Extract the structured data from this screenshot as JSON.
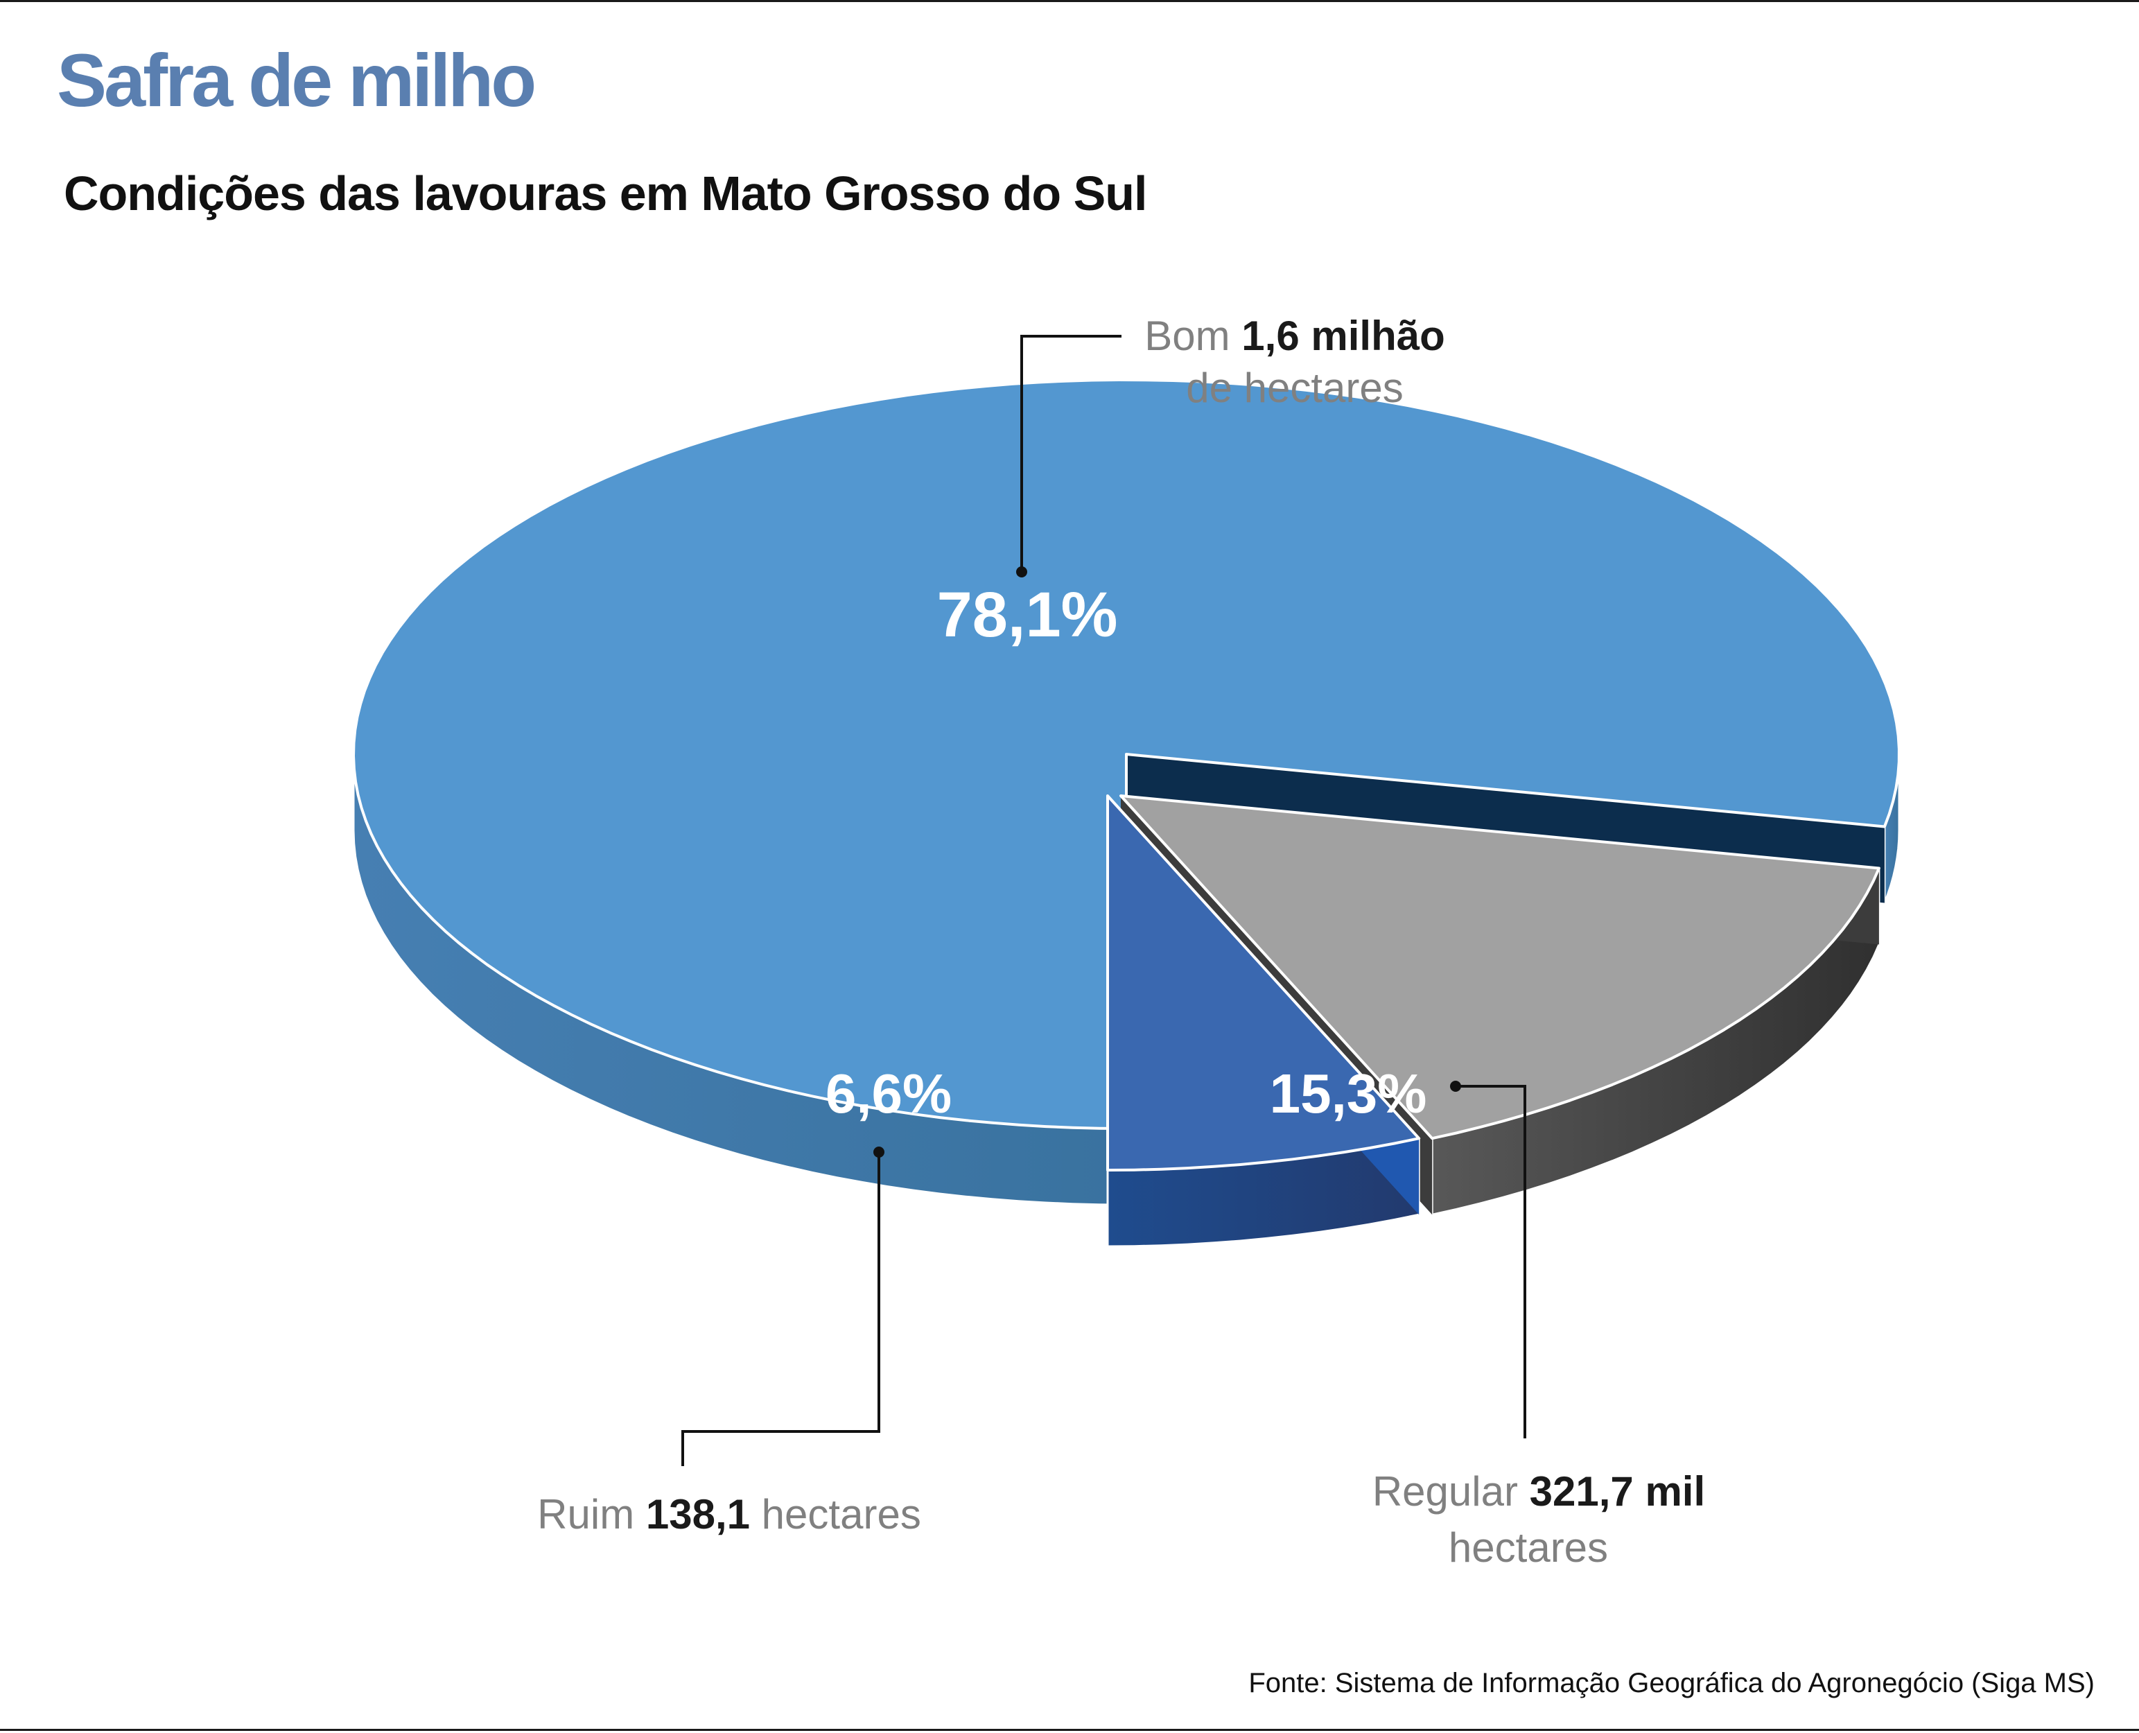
{
  "header": {
    "title": "Safra de milho",
    "subtitle": "Condições das lavouras em Mato Grosso do Sul"
  },
  "footer": {
    "source": "Fonte: Sistema de Informação Geográfica do Agronegócio (Siga MS)"
  },
  "chart_data": {
    "type": "pie",
    "title": "Safra de milho",
    "subtitle": "Condições das lavouras em Mato Grosso do Sul",
    "style": "3d-exploded",
    "slices": [
      {
        "category": "Bom",
        "percent": 78.1,
        "percent_label": "78,1%",
        "value_label": "1,6 milhão",
        "value_suffix": "de hectares",
        "color_top": "#5397d0",
        "color_side": "#3f79ac",
        "color_wall": "#0c2d4d"
      },
      {
        "category": "Regular",
        "percent": 15.3,
        "percent_label": "15,3%",
        "value_label": "321,7 mil",
        "value_suffix": "hectares",
        "color_top": "#a1a1a1",
        "color_side": "#3c3c3c",
        "color_wall": "#3c3c3c"
      },
      {
        "category": "Ruim",
        "percent": 6.6,
        "percent_label": "6,6%",
        "value_label": "138,1",
        "value_suffix": "hectares",
        "color_top": "#3a68b0",
        "color_side": "#1f4a8c",
        "color_wall": "#2058b0"
      }
    ]
  }
}
